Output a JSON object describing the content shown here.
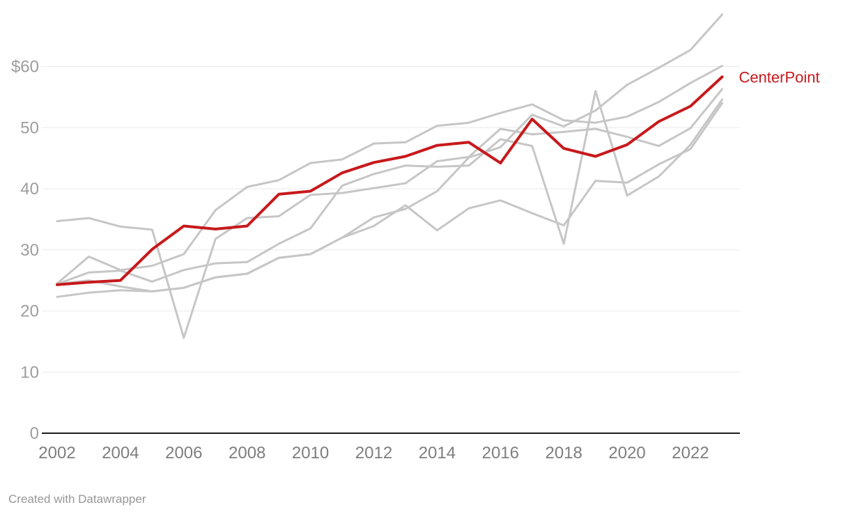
{
  "chart_data": {
    "type": "line",
    "title": "",
    "xlabel": "",
    "ylabel": "",
    "x": [
      2002,
      2003,
      2004,
      2005,
      2006,
      2007,
      2008,
      2009,
      2010,
      2011,
      2012,
      2013,
      2014,
      2015,
      2016,
      2017,
      2018,
      2019,
      2020,
      2021,
      2022,
      2023
    ],
    "xticks": [
      2002,
      2004,
      2006,
      2008,
      2010,
      2012,
      2014,
      2016,
      2018,
      2020,
      2022
    ],
    "yticks": [
      {
        "value": 60,
        "label": "$60"
      },
      {
        "value": 50,
        "label": "50"
      },
      {
        "value": 40,
        "label": "40"
      },
      {
        "value": 30,
        "label": "30"
      },
      {
        "value": 20,
        "label": "20"
      },
      {
        "value": 10,
        "label": "10"
      },
      {
        "value": 0,
        "label": "0"
      }
    ],
    "ylim": [
      0,
      70
    ],
    "grid": "horizontal",
    "legend_position": "end-of-line-label",
    "series": [
      {
        "id": "gray-1",
        "label": "",
        "color": "#c6c6c6",
        "width": 3,
        "values": [
          34.7,
          35.2,
          33.8,
          33.3,
          15.6,
          31.8,
          35.2,
          35.5,
          39.0,
          39.3,
          40.1,
          40.9,
          44.5,
          45.2,
          49.8,
          48.9,
          49.3,
          49.8,
          48.5,
          47.0,
          49.9,
          56.3
        ]
      },
      {
        "id": "gray-2",
        "label": "",
        "color": "#c6c6c6",
        "width": 3,
        "values": [
          24.5,
          28.9,
          26.7,
          27.4,
          29.3,
          36.5,
          40.3,
          41.4,
          44.2,
          44.8,
          47.4,
          47.6,
          50.3,
          50.8,
          52.4,
          53.8,
          51.2,
          50.8,
          51.8,
          54.2,
          57.3,
          60.1
        ]
      },
      {
        "id": "gray-3",
        "label": "",
        "color": "#c6c6c6",
        "width": 3,
        "values": [
          24.4,
          26.3,
          26.6,
          24.8,
          26.7,
          27.8,
          28.0,
          31.0,
          33.5,
          40.5,
          42.4,
          43.8,
          43.6,
          43.8,
          48.1,
          47.0,
          31.0,
          56.0,
          38.9,
          42.0,
          47.2,
          54.6
        ]
      },
      {
        "id": "gray-4",
        "label": "",
        "color": "#c6c6c6",
        "width": 3,
        "values": [
          24.4,
          25.0,
          24.0,
          23.2,
          23.8,
          25.5,
          26.1,
          28.7,
          29.3,
          32.0,
          35.3,
          36.7,
          39.6,
          45.1,
          46.8,
          52.1,
          50.2,
          52.8,
          57.0,
          59.8,
          62.7,
          68.5
        ]
      },
      {
        "id": "gray-5",
        "label": "",
        "color": "#c6c6c6",
        "width": 3,
        "values": [
          22.3,
          23.0,
          23.4,
          23.2,
          23.8,
          25.5,
          26.1,
          28.7,
          29.3,
          32.0,
          33.9,
          37.3,
          33.2,
          36.8,
          38.1,
          36.0,
          34.0,
          41.3,
          41.0,
          44.0,
          46.5,
          54.0
        ]
      },
      {
        "id": "centerpoint",
        "label": "CenterPoint",
        "color": "#c7191c",
        "width": 4,
        "values": [
          24.3,
          24.7,
          25.0,
          30.1,
          33.9,
          33.4,
          33.9,
          39.1,
          39.6,
          42.6,
          44.3,
          45.3,
          47.1,
          47.6,
          44.2,
          51.4,
          46.6,
          45.3,
          47.2,
          51.0,
          53.5,
          58.3
        ]
      }
    ]
  },
  "footer": {
    "credit": "Created with Datawrapper"
  },
  "colors": {
    "highlight": "#c7191c",
    "context_line": "#c6c6c6",
    "grid": "#e9e9e9",
    "axis": "#1d1d1d"
  }
}
